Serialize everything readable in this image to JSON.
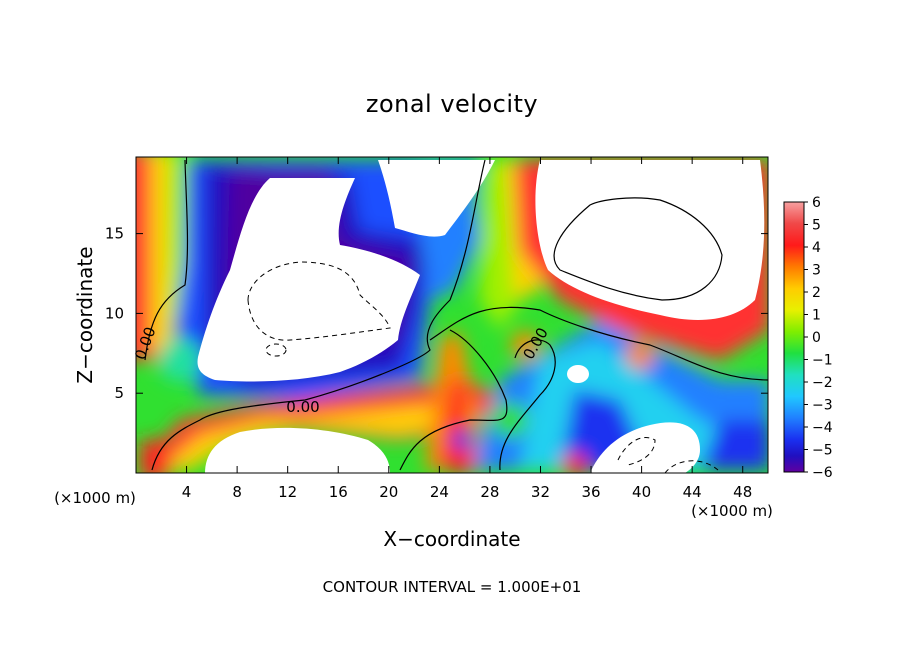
{
  "chart_data": {
    "type": "heatmap",
    "title": "zonal velocity",
    "xlabel": "X−coordinate",
    "ylabel": "Z−coordinate",
    "x_unit_note": "(×1000 m)",
    "y_unit_note": "(×1000 m)",
    "xlim": [
      0,
      50
    ],
    "ylim": [
      0,
      19.8
    ],
    "x_ticks": [
      "4",
      "8",
      "12",
      "16",
      "20",
      "24",
      "28",
      "32",
      "36",
      "40",
      "44",
      "48"
    ],
    "y_ticks": [
      "5",
      "10",
      "15"
    ],
    "colorbar": {
      "labels": [
        "6",
        "5",
        "4",
        "3",
        "2",
        "1",
        "0",
        "−1",
        "−2",
        "−3",
        "−4",
        "−5",
        "−6"
      ],
      "range": [
        -6,
        6
      ],
      "colors": [
        "#f7a0a0",
        "#f03030",
        "#ff2020",
        "#ff8800",
        "#ffd000",
        "#e8f000",
        "#a0f000",
        "#30e020",
        "#20e0a0",
        "#20d0f0",
        "#2098ff",
        "#2050ff",
        "#1020d0",
        "#5000a0"
      ]
    },
    "contour_labels": [
      "0.00",
      "0.00",
      "0.00"
    ],
    "contour_note": "CONTOUR INTERVAL = 1.000E+01",
    "note": "Values above +6 or below −6 rendered white (outside color range)."
  }
}
